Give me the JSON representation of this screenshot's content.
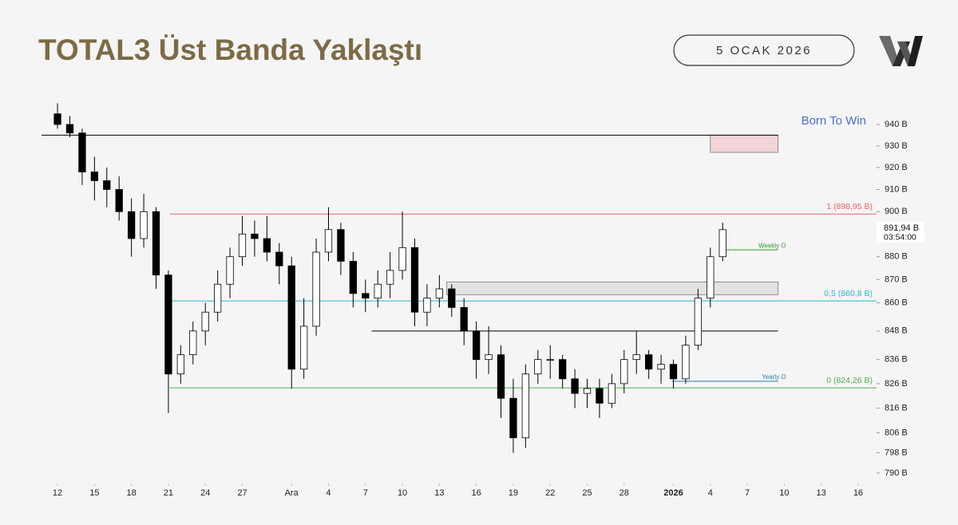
{
  "header": {
    "title": "TOTAL3 Üst Banda Yaklaştı",
    "date": "5 OCAK 2026"
  },
  "chart_data": {
    "type": "candlestick",
    "watermark": "Born To Win",
    "log_scale": true,
    "ylim": [
      786,
      950
    ],
    "yticks": [
      {
        "value": 790,
        "label": "790 B"
      },
      {
        "value": 798,
        "label": "798 B"
      },
      {
        "value": 806,
        "label": "806 B"
      },
      {
        "value": 816,
        "label": "816 B"
      },
      {
        "value": 826,
        "label": "826 B"
      },
      {
        "value": 836,
        "label": "836 B"
      },
      {
        "value": 848,
        "label": "848 B"
      },
      {
        "value": 860,
        "label": "860 B"
      },
      {
        "value": 870,
        "label": "870 B"
      },
      {
        "value": 880,
        "label": "880 B"
      },
      {
        "value": 900,
        "label": "900 B"
      },
      {
        "value": 910,
        "label": "910 B"
      },
      {
        "value": 920,
        "label": "920 B"
      },
      {
        "value": 930,
        "label": "930 B"
      },
      {
        "value": 940,
        "label": "940 B"
      }
    ],
    "xlim": [
      -1.3,
      66.3
    ],
    "xticks": [
      {
        "value": 0,
        "label": "12"
      },
      {
        "value": 3,
        "label": "15"
      },
      {
        "value": 6,
        "label": "18"
      },
      {
        "value": 9,
        "label": "21"
      },
      {
        "value": 12,
        "label": "24"
      },
      {
        "value": 15,
        "label": "27"
      },
      {
        "value": 19,
        "label": "Ara"
      },
      {
        "value": 22,
        "label": "4"
      },
      {
        "value": 25,
        "label": "7"
      },
      {
        "value": 28,
        "label": "10"
      },
      {
        "value": 31,
        "label": "13"
      },
      {
        "value": 34,
        "label": "16"
      },
      {
        "value": 37,
        "label": "19"
      },
      {
        "value": 40,
        "label": "22"
      },
      {
        "value": 43,
        "label": "25"
      },
      {
        "value": 46,
        "label": "28"
      },
      {
        "value": 50,
        "label": "2026",
        "bold": true
      },
      {
        "value": 53,
        "label": "4"
      },
      {
        "value": 56,
        "label": "7"
      },
      {
        "value": 59,
        "label": "10"
      },
      {
        "value": 62,
        "label": "13"
      },
      {
        "value": 65,
        "label": "16"
      }
    ],
    "up_color": "#ffffff",
    "down_color": "#000000",
    "x": [
      0,
      1,
      2,
      3,
      4,
      5,
      6,
      7,
      8,
      9,
      10,
      11,
      12,
      13,
      14,
      15,
      16,
      17,
      18,
      19,
      20,
      21,
      22,
      23,
      24,
      25,
      26,
      27,
      28,
      29,
      30,
      31,
      32,
      33,
      34,
      35,
      36,
      37,
      38,
      39,
      40,
      41,
      42,
      43,
      44,
      45,
      46,
      47,
      48,
      49,
      50,
      51,
      52,
      53,
      54
    ],
    "open": [
      945,
      940,
      936,
      918,
      914,
      910,
      900,
      888,
      900,
      872,
      830,
      838,
      848,
      856,
      868,
      880,
      890,
      888,
      882,
      876,
      832,
      850,
      882,
      892,
      878,
      864,
      862,
      868,
      874,
      884,
      856,
      862,
      866,
      858,
      848,
      836,
      838,
      820,
      804,
      830,
      836,
      836,
      828,
      822,
      824,
      818,
      826,
      836,
      838,
      832,
      834,
      828,
      842,
      862,
      880
    ],
    "high": [
      950,
      944,
      938,
      925,
      920,
      916,
      906,
      908,
      902,
      874,
      842,
      852,
      860,
      874,
      884,
      898,
      896,
      898,
      886,
      880,
      862,
      888,
      902,
      895,
      882,
      870,
      874,
      882,
      900,
      888,
      868,
      872,
      868,
      862,
      852,
      850,
      842,
      828,
      834,
      840,
      842,
      838,
      832,
      828,
      828,
      830,
      840,
      848,
      840,
      838,
      836,
      846,
      866,
      884,
      895
    ],
    "low": [
      938,
      934,
      912,
      905,
      902,
      896,
      880,
      884,
      866,
      814,
      826,
      834,
      842,
      852,
      862,
      876,
      880,
      878,
      868,
      824,
      828,
      846,
      878,
      872,
      858,
      856,
      858,
      862,
      870,
      850,
      850,
      858,
      854,
      842,
      828,
      830,
      812,
      798,
      800,
      826,
      828,
      824,
      816,
      816,
      812,
      816,
      822,
      830,
      828,
      826,
      824,
      826,
      840,
      858,
      878
    ],
    "close": [
      940,
      936,
      918,
      914,
      910,
      900,
      888,
      900,
      872,
      830,
      838,
      848,
      856,
      868,
      880,
      890,
      888,
      882,
      876,
      832,
      850,
      882,
      892,
      878,
      864,
      862,
      868,
      874,
      884,
      856,
      862,
      866,
      858,
      848,
      836,
      838,
      820,
      804,
      830,
      836,
      836,
      828,
      822,
      824,
      818,
      826,
      836,
      838,
      832,
      834,
      828,
      842,
      862,
      880,
      891.94
    ],
    "last_price": {
      "value": 891.94,
      "label": "891,94 B",
      "countdown": "03:54:00"
    },
    "levels": [
      {
        "value": 935,
        "color": "#000000",
        "to": 58.5
      },
      {
        "value": 898.95,
        "label": "1 (898,95 B)",
        "color": "#e06666",
        "from": 9.1
      },
      {
        "value": 860.8,
        "label": "0,5 (860,8 B)",
        "color": "#2ab7ca",
        "from": 9.1
      },
      {
        "value": 824.26,
        "label": "0 (824,26 B)",
        "color": "#4caf50",
        "from": 9.1
      },
      {
        "value": 848,
        "color": "#000000",
        "from": 25.5,
        "to": 58.5
      },
      {
        "value": 883,
        "label": "Weekly O",
        "color": "#2e9e2e",
        "from": 54,
        "to": 58.5,
        "small": true
      },
      {
        "value": 827,
        "label": "Yearly O",
        "color": "#2a7ab0",
        "from": 49.9,
        "to": 58.5,
        "small": true
      }
    ],
    "zones": [
      {
        "low": 927,
        "high": 935,
        "from": 53,
        "to": 58.5,
        "color": "#f2d4d8"
      },
      {
        "low": 863.5,
        "high": 869,
        "from": 31.6,
        "to": 58.5,
        "color": "#e3e3e3"
      }
    ]
  }
}
